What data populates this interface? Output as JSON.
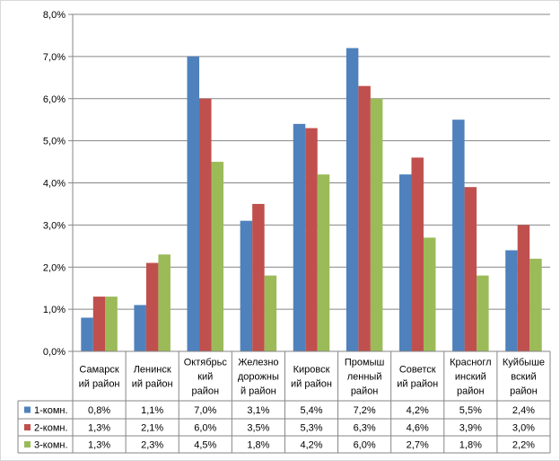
{
  "chart_data": {
    "type": "bar",
    "title": "",
    "xlabel": "",
    "ylabel": "",
    "ylim": [
      0,
      8
    ],
    "yticks": [
      "0,0%",
      "1,0%",
      "2,0%",
      "3,0%",
      "4,0%",
      "5,0%",
      "6,0%",
      "7,0%",
      "8,0%"
    ],
    "grid": true,
    "legend": "data-table",
    "categories": [
      [
        "Самарск",
        "ий район"
      ],
      [
        "Ленинск",
        "ий район"
      ],
      [
        "Октябрьс",
        "кий",
        "район"
      ],
      [
        "Железно",
        "дорожны",
        "й район"
      ],
      [
        "Кировск",
        "ий район"
      ],
      [
        "Промыш",
        "ленный",
        "район"
      ],
      [
        "Советск",
        "ий район"
      ],
      [
        "Красногл",
        "инский",
        "район"
      ],
      [
        "Куйбыше",
        "вский",
        "район"
      ]
    ],
    "series": [
      {
        "name": "1-комн.",
        "color": "#4f81bd",
        "values": [
          0.8,
          1.1,
          7.0,
          3.1,
          5.4,
          7.2,
          4.2,
          5.5,
          2.4
        ],
        "labels": [
          "0,8%",
          "1,1%",
          "7,0%",
          "3,1%",
          "5,4%",
          "7,2%",
          "4,2%",
          "5,5%",
          "2,4%"
        ]
      },
      {
        "name": "2-комн.",
        "color": "#c0504d",
        "values": [
          1.3,
          2.1,
          6.0,
          3.5,
          5.3,
          6.3,
          4.6,
          3.9,
          3.0
        ],
        "labels": [
          "1,3%",
          "2,1%",
          "6,0%",
          "3,5%",
          "5,3%",
          "6,3%",
          "4,6%",
          "3,9%",
          "3,0%"
        ]
      },
      {
        "name": "3-комн.",
        "color": "#9bbb59",
        "values": [
          1.3,
          2.3,
          4.5,
          1.8,
          4.2,
          6.0,
          2.7,
          1.8,
          2.2
        ],
        "labels": [
          "1,3%",
          "2,3%",
          "4,5%",
          "1,8%",
          "4,2%",
          "6,0%",
          "2,7%",
          "1,8%",
          "2,2%"
        ]
      }
    ]
  }
}
